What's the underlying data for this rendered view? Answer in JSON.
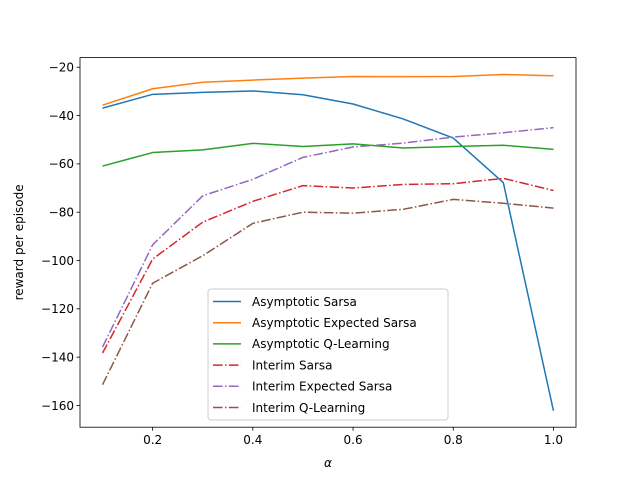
{
  "chart_data": {
    "type": "line",
    "title": "",
    "xlabel": "α",
    "ylabel": "reward per episode",
    "xlim": [
      0.055,
      1.045
    ],
    "ylim": [
      -169,
      -16
    ],
    "xticks": [
      0.2,
      0.4,
      0.6,
      0.8,
      1.0
    ],
    "xtick_labels": [
      "0.2",
      "0.4",
      "0.6",
      "0.8",
      "1.0"
    ],
    "yticks": [
      -20,
      -40,
      -60,
      -80,
      -100,
      -120,
      -140,
      -160
    ],
    "ytick_labels": [
      "−20",
      "−40",
      "−60",
      "−80",
      "−100",
      "−120",
      "−140",
      "−160"
    ],
    "grid": false,
    "legend_position": "lower-center",
    "x": [
      0.1,
      0.2,
      0.3,
      0.4,
      0.5,
      0.6,
      0.7,
      0.8,
      0.9,
      1.0
    ],
    "series": [
      {
        "name": "Asymptotic Sarsa",
        "color": "#1f77b4",
        "style": "solid",
        "values": [
          -36.9,
          -31.2,
          -30.4,
          -29.8,
          -31.4,
          -35.2,
          -41.4,
          -49.3,
          -67.8,
          -162.2
        ]
      },
      {
        "name": "Asymptotic Expected Sarsa",
        "color": "#ff7f0e",
        "style": "solid",
        "values": [
          -35.7,
          -28.9,
          -26.2,
          -25.3,
          -24.5,
          -23.8,
          -23.9,
          -23.8,
          -23.0,
          -23.5
        ]
      },
      {
        "name": "Asymptotic Q-Learning",
        "color": "#2ca02c",
        "style": "solid",
        "values": [
          -60.9,
          -55.3,
          -54.2,
          -51.5,
          -52.8,
          -51.7,
          -53.4,
          -52.8,
          -52.3,
          -54.0
        ]
      },
      {
        "name": "Interim Sarsa",
        "color": "#d62728",
        "style": "dashdot",
        "values": [
          -138.3,
          -99.4,
          -84.1,
          -75.5,
          -69.0,
          -70.0,
          -68.5,
          -68.2,
          -66.0,
          -71.0
        ]
      },
      {
        "name": "Interim Expected Sarsa",
        "color": "#9467bd",
        "style": "dashdot",
        "values": [
          -135.8,
          -93.5,
          -73.2,
          -66.4,
          -57.3,
          -53.0,
          -51.4,
          -48.9,
          -47.1,
          -45.0
        ]
      },
      {
        "name": "Interim Q-Learning",
        "color": "#8c564b",
        "style": "dashdot",
        "values": [
          -151.4,
          -109.4,
          -98.0,
          -84.6,
          -80.0,
          -80.4,
          -78.8,
          -74.7,
          -76.3,
          -78.3
        ]
      }
    ]
  }
}
